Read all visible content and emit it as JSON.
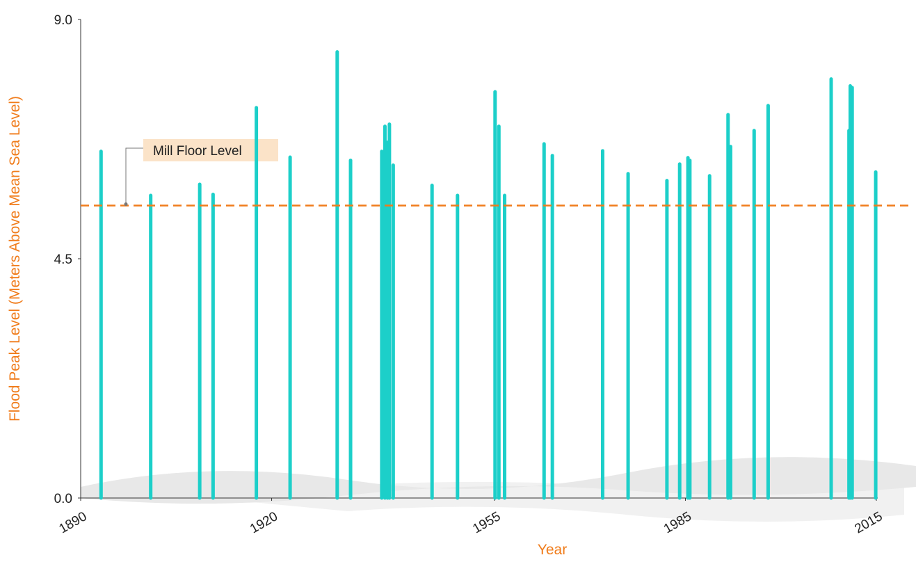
{
  "chart_data": {
    "type": "bar",
    "x_label": "Year",
    "y_label": "Flood Peak Level (Meters Above Mean Sea Level)",
    "x": [
      1893.2,
      1901.0,
      1908.7,
      1910.8,
      1917.6,
      1922.9,
      1930.3,
      1932.4,
      1937.3,
      1937.8,
      1938.2,
      1938.5,
      1939.1,
      1945.2,
      1949.2,
      1955.1,
      1955.7,
      1956.6,
      1962.8,
      1964.1,
      1972.0,
      1976.0,
      1982.1,
      1984.1,
      1985.4,
      1985.7,
      1988.8,
      1991.7,
      1992.1,
      1995.8,
      1998.0,
      2007.9,
      2010.7,
      2010.9,
      2011.2,
      2014.9
    ],
    "values": [
      6.52,
      5.69,
      5.9,
      5.71,
      7.34,
      6.41,
      8.39,
      6.35,
      6.52,
      6.99,
      6.69,
      7.03,
      6.26,
      5.88,
      5.69,
      7.64,
      6.99,
      5.69,
      6.66,
      6.44,
      6.53,
      6.1,
      5.97,
      6.28,
      6.4,
      6.35,
      6.06,
      7.21,
      6.61,
      6.91,
      7.38,
      7.88,
      6.91,
      7.75,
      7.72,
      6.13
    ],
    "color": "#1ccfc9",
    "xlim": [
      1890,
      2015
    ],
    "xticks": [
      1890,
      1920,
      1955,
      1985,
      2015
    ],
    "ylim": [
      0,
      9
    ],
    "yticks": [
      {
        "value": 0,
        "label": "0.0"
      },
      4.5,
      {
        "value": 9,
        "label": "9.0"
      }
    ],
    "reference_line": {
      "label": "Mill Floor Level",
      "value": 5.5,
      "color": "#f07c1b"
    }
  }
}
